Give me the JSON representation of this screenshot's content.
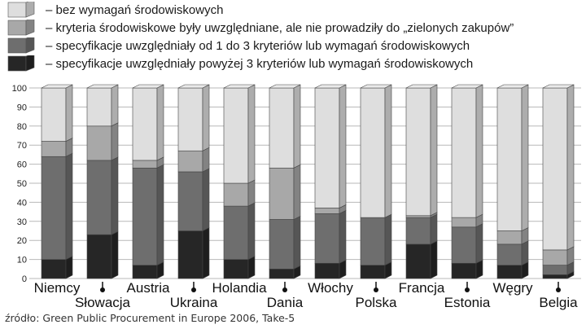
{
  "legend": [
    {
      "label": "– bez wymagań środowiskowych",
      "color": "#dedede"
    },
    {
      "label": "– kryteria środowiskowe były uwzględniane, ale nie prowadziły do „zielonych zakupów”",
      "color": "#a8a8a8"
    },
    {
      "label": "– specyfikacje uwzględniały od 1 do 3 kryteriów lub wymagań środowiskowych",
      "color": "#6e6e6e"
    },
    {
      "label": "– specyfikacje uwzględniały powyżej 3 kryteriów lub wymagań środowiskowych",
      "color": "#262626"
    }
  ],
  "source": "źródło: Green Public Procurement in Europe 2006, Take-5",
  "chart_data": {
    "type": "bar",
    "stacked": true,
    "categories": [
      "Niemcy",
      "Słowacja",
      "Austria",
      "Ukraina",
      "Holandia",
      "Dania",
      "Włochy",
      "Polska",
      "Francja",
      "Estonia",
      "Węgry",
      "Belgia"
    ],
    "series": [
      {
        "name": "– specyfikacje uwzględniały powyżej 3 kryteriów lub wymagań środowiskowych",
        "color": "#262626",
        "values": [
          10,
          23,
          7,
          25,
          10,
          5,
          8,
          7,
          18,
          8,
          7,
          2
        ]
      },
      {
        "name": "– specyfikacje uwzględniały od 1 do 3 kryteriów lub wymagań środowiskowych",
        "color": "#6e6e6e",
        "values": [
          54,
          39,
          51,
          31,
          28,
          26,
          26,
          25,
          14,
          19,
          11,
          5
        ]
      },
      {
        "name": "– kryteria środowiskowe były uwzględniane, ale nie prowadziły do „zielonych zakupów”",
        "color": "#a8a8a8",
        "values": [
          8,
          18,
          4,
          11,
          12,
          27,
          3,
          0,
          1,
          5,
          7,
          8
        ]
      },
      {
        "name": "– bez wymagań środowiskowych",
        "color": "#dedede",
        "values": [
          28,
          20,
          38,
          33,
          50,
          42,
          63,
          68,
          67,
          68,
          75,
          85
        ]
      }
    ],
    "ylim": [
      0,
      100
    ],
    "yticks": [
      0,
      10,
      20,
      30,
      40,
      50,
      60,
      70,
      80,
      90,
      100
    ],
    "grid": true
  }
}
